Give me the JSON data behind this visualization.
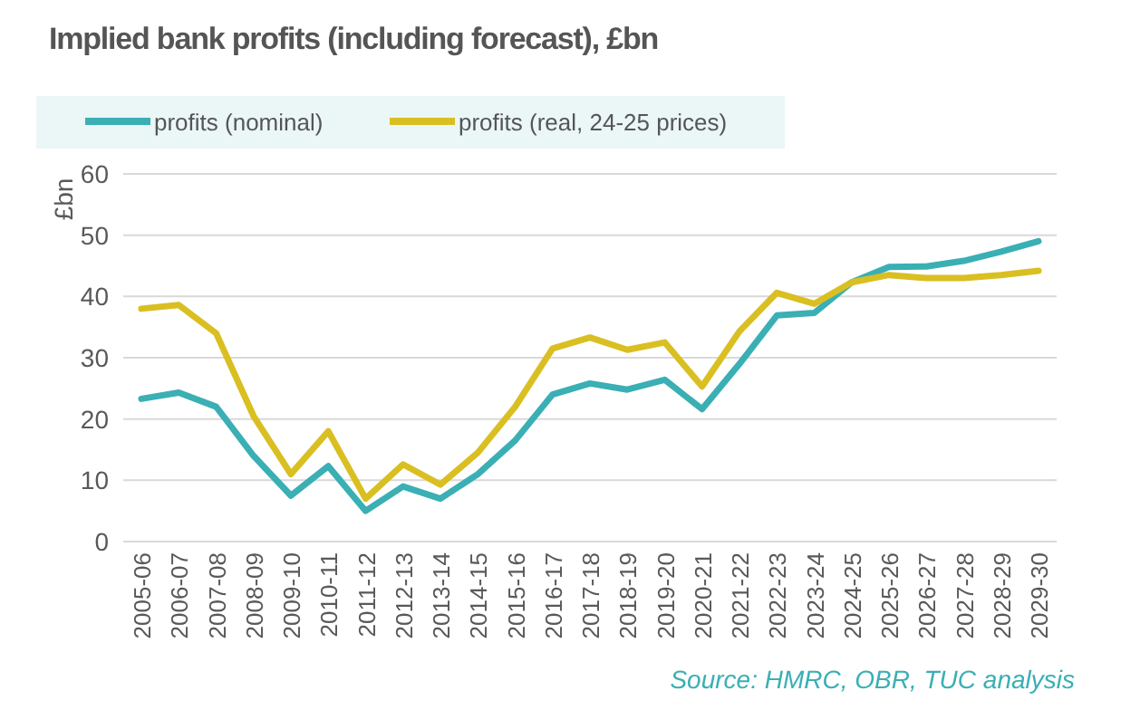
{
  "chart_data": {
    "type": "line",
    "title": "Implied bank profits (including forecast), £bn",
    "ylabel": "£bn",
    "categories": [
      "2005-06",
      "2006-07",
      "2007-08",
      "2008-09",
      "2009-10",
      "2010-11",
      "2011-12",
      "2012-13",
      "2013-14",
      "2014-15",
      "2015-16",
      "2016-17",
      "2017-18",
      "2018-19",
      "2019-20",
      "2020-21",
      "2021-22",
      "2022-23",
      "2023-24",
      "2024-25",
      "2025-26",
      "2026-27",
      "2027-28",
      "2028-29",
      "2029-30"
    ],
    "series": [
      {
        "name": "profits (nominal)",
        "color": "#3aafb4",
        "values": [
          23.3,
          24.3,
          22,
          14,
          7.5,
          12.3,
          5,
          9,
          7,
          11,
          16.5,
          24,
          25.8,
          24.8,
          26.4,
          21.6,
          29,
          36.9,
          37.3,
          42.3,
          44.8,
          44.9,
          45.8,
          47.3,
          49
        ]
      },
      {
        "name": "profits (real, 24-25 prices)",
        "color": "#d9bf21",
        "values": [
          38,
          38.6,
          34,
          20.5,
          11,
          18,
          7,
          12.6,
          9.3,
          14.5,
          22,
          31.5,
          33.3,
          31.3,
          32.5,
          25.3,
          34.3,
          40.6,
          38.8,
          42.3,
          43.5,
          43,
          43,
          43.5,
          44.2
        ]
      }
    ],
    "ylim": [
      0,
      60
    ],
    "yticks": [
      0,
      10,
      20,
      30,
      40,
      50,
      60
    ],
    "grid": "y",
    "legend": "top",
    "line_style": "solid",
    "marker": "none",
    "annotations": [
      "Source: HMRC, OBR, TUC analysis"
    ]
  }
}
